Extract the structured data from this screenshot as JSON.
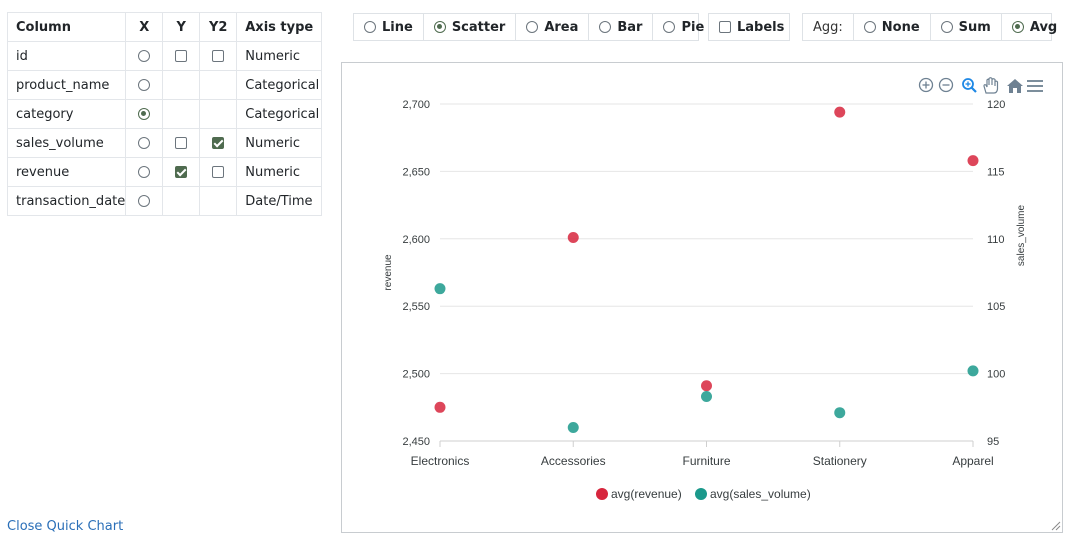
{
  "columns_table": {
    "headers": [
      "Column",
      "X",
      "Y",
      "Y2",
      "Axis type"
    ],
    "rows": [
      {
        "name": "id",
        "x": false,
        "y": false,
        "y2": false,
        "has_y": true,
        "has_y2": true,
        "type": "Numeric"
      },
      {
        "name": "product_name",
        "x": false,
        "has_y": false,
        "has_y2": false,
        "type": "Categorical"
      },
      {
        "name": "category",
        "x": true,
        "has_y": false,
        "has_y2": false,
        "type": "Categorical"
      },
      {
        "name": "sales_volume",
        "x": false,
        "y": false,
        "y2": true,
        "has_y": true,
        "has_y2": true,
        "type": "Numeric"
      },
      {
        "name": "revenue",
        "x": false,
        "y": true,
        "y2": false,
        "has_y": true,
        "has_y2": true,
        "type": "Numeric"
      },
      {
        "name": "transaction_date",
        "x": false,
        "has_y": false,
        "has_y2": false,
        "type": "Date/Time"
      }
    ]
  },
  "chart_type": {
    "options": [
      "Line",
      "Scatter",
      "Area",
      "Bar",
      "Pie"
    ],
    "selected": "Scatter"
  },
  "labels_toggle": {
    "label": "Labels",
    "checked": false
  },
  "aggregation": {
    "label": "Agg:",
    "options": [
      "None",
      "Sum",
      "Avg"
    ],
    "selected": "Avg"
  },
  "close_link": "Close Quick Chart",
  "toolbar": {
    "icons": [
      "zoom-in-icon",
      "zoom-out-icon",
      "selection-zoom-icon",
      "pan-icon",
      "home-icon",
      "menu-icon"
    ]
  },
  "colors": {
    "series1": "#d7263d",
    "series2": "#1b998b",
    "selected": "#4f6b4f",
    "accent": "#0d6efd"
  },
  "chart_data": {
    "type": "scatter",
    "categories": [
      "Electronics",
      "Accessories",
      "Furniture",
      "Stationery",
      "Apparel"
    ],
    "series": [
      {
        "name": "avg(revenue)",
        "axis": "left",
        "values": [
          2475,
          2601,
          2491,
          2694,
          2658
        ]
      },
      {
        "name": "avg(sales_volume)",
        "axis": "right",
        "values": [
          106.3,
          96.0,
          98.3,
          97.1,
          100.2
        ]
      }
    ],
    "ylabel": "revenue",
    "y2label": "sales_volume",
    "ylim": [
      2450,
      2700
    ],
    "y2lim": [
      95,
      120
    ],
    "yticks": [
      "2,700",
      "2,650",
      "2,600",
      "2,550",
      "2,500",
      "2,450"
    ],
    "y2ticks": [
      "120",
      "115",
      "110",
      "105",
      "100",
      "95"
    ],
    "grid": true,
    "legend": "bottom-center"
  }
}
